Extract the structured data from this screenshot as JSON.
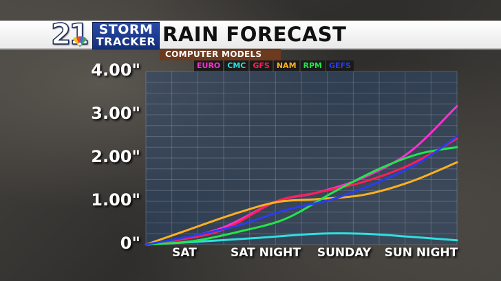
{
  "brand": {
    "channel_number": "21",
    "name_line1": "STORM",
    "name_line2": "TRACKER"
  },
  "header": {
    "title": "RAIN FORECAST",
    "subtitle": "COMPUTER MODELS"
  },
  "chart_data": {
    "type": "line",
    "title": "RAIN FORECAST",
    "subtitle": "COMPUTER MODELS",
    "xlabel": "",
    "ylabel": "",
    "categories": [
      "SAT",
      "SAT NIGHT",
      "SUNDAY",
      "SUN NIGHT"
    ],
    "y_tick_labels": [
      "0\"",
      "1.00\"",
      "2.00\"",
      "3.00\"",
      "4.00\""
    ],
    "y_ticks": [
      0,
      1,
      2,
      3,
      4
    ],
    "ylim": [
      0,
      4
    ],
    "xlim": [
      0,
      1
    ],
    "grid": true,
    "legend": "top",
    "series": [
      {
        "name": "EURO",
        "color": "#ff2fd0",
        "x": [
          0,
          0.1,
          0.25,
          0.42,
          0.55,
          0.7,
          0.85,
          1.0
        ],
        "y": [
          0,
          0.12,
          0.4,
          1.0,
          1.2,
          1.55,
          2.15,
          3.2
        ]
      },
      {
        "name": "CMC",
        "color": "#2de0e0",
        "x": [
          0,
          0.15,
          0.35,
          0.55,
          0.7,
          0.85,
          1.0
        ],
        "y": [
          0,
          0.06,
          0.15,
          0.25,
          0.25,
          0.18,
          0.1
        ]
      },
      {
        "name": "GFS",
        "color": "#ff1f55",
        "x": [
          0,
          0.1,
          0.25,
          0.42,
          0.55,
          0.7,
          0.85,
          1.0
        ],
        "y": [
          0,
          0.1,
          0.35,
          1.0,
          1.2,
          1.45,
          1.85,
          2.45
        ]
      },
      {
        "name": "NAM",
        "color": "#ffb11f",
        "x": [
          0,
          0.12,
          0.28,
          0.42,
          0.55,
          0.7,
          0.85,
          1.0
        ],
        "y": [
          0,
          0.3,
          0.7,
          0.98,
          1.05,
          1.15,
          1.45,
          1.9
        ]
      },
      {
        "name": "RPM",
        "color": "#22e64a",
        "x": [
          0,
          0.15,
          0.3,
          0.45,
          0.6,
          0.75,
          0.88,
          1.0
        ],
        "y": [
          0,
          0.08,
          0.3,
          0.6,
          1.2,
          1.75,
          2.1,
          2.25
        ]
      },
      {
        "name": "GEFS",
        "color": "#2a3cf0",
        "x": [
          0,
          0.15,
          0.3,
          0.45,
          0.6,
          0.75,
          0.88,
          1.0
        ],
        "y": [
          0,
          0.2,
          0.45,
          0.8,
          1.05,
          1.45,
          1.9,
          2.5
        ]
      }
    ]
  }
}
